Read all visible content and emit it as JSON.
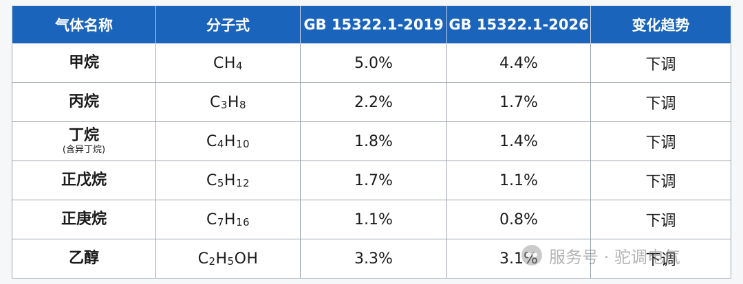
{
  "table": {
    "headers": [
      "气体名称",
      "分子式",
      "GB 15322.1-2019",
      "GB 15322.1-2026",
      "变化趋势"
    ],
    "rows": [
      {
        "name": "甲烷",
        "note": "",
        "formula": [
          {
            "t": "CH"
          },
          {
            "s": "4"
          }
        ],
        "old": "5.0%",
        "new": "4.4%",
        "trend": "下调"
      },
      {
        "name": "丙烷",
        "note": "",
        "formula": [
          {
            "t": "C"
          },
          {
            "s": "3"
          },
          {
            "t": "H"
          },
          {
            "s": "8"
          }
        ],
        "old": "2.2%",
        "new": "1.7%",
        "trend": "下调"
      },
      {
        "name": "丁烷",
        "note": "(含异丁烷)",
        "formula": [
          {
            "t": "C"
          },
          {
            "s": "4"
          },
          {
            "t": "H"
          },
          {
            "s": "10"
          }
        ],
        "old": "1.8%",
        "new": "1.4%",
        "trend": "下调"
      },
      {
        "name": "正戊烷",
        "note": "",
        "formula": [
          {
            "t": "C"
          },
          {
            "s": "5"
          },
          {
            "t": "H"
          },
          {
            "s": "12"
          }
        ],
        "old": "1.7%",
        "new": "1.1%",
        "trend": "下调"
      },
      {
        "name": "正庚烷",
        "note": "",
        "formula": [
          {
            "t": "C"
          },
          {
            "s": "7"
          },
          {
            "t": "H"
          },
          {
            "s": "16"
          }
        ],
        "old": "1.1%",
        "new": "0.8%",
        "trend": "下调"
      },
      {
        "name": "乙醇",
        "note": "",
        "formula": [
          {
            "t": "C"
          },
          {
            "s": "2"
          },
          {
            "t": "H"
          },
          {
            "s": "5"
          },
          {
            "t": "OH"
          }
        ],
        "old": "3.3%",
        "new": "3.1%",
        "trend": "下调"
      }
    ]
  },
  "watermark": {
    "text": "服务号 · 驼调电气",
    "icon": "wechat-icon"
  },
  "colors": {
    "header_bg": "#1b64bc",
    "header_text": "#ffffff",
    "cell_bg": "#ffffff",
    "border": "#9aa3ad"
  }
}
